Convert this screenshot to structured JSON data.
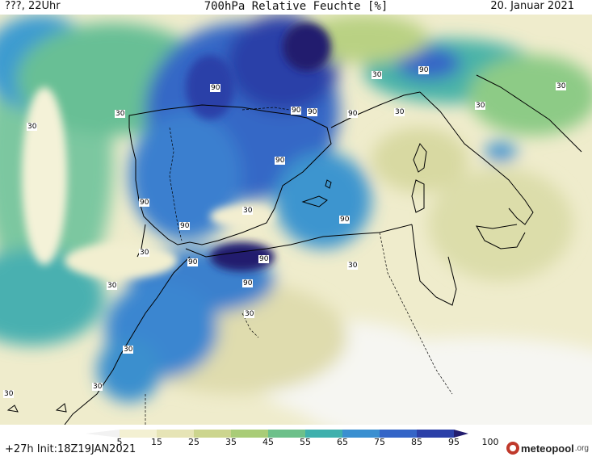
{
  "header": {
    "left_label": "???, 22Uhr",
    "title": "700hPa Relative Feuchte [%]",
    "date": "20. Januar 2021"
  },
  "map": {
    "contour_labels": [
      "90",
      "90",
      "90",
      "90",
      "90",
      "90",
      "90",
      "90",
      "90",
      "90",
      "90",
      "90",
      "30",
      "30",
      "30",
      "30",
      "30",
      "30",
      "30",
      "30",
      "30",
      "30",
      "30",
      "30",
      "30",
      "30"
    ]
  },
  "colorbar": {
    "ticks": [
      "5",
      "15",
      "25",
      "35",
      "45",
      "55",
      "65",
      "75",
      "85",
      "95",
      "100"
    ],
    "colors": [
      "#f2f2f2",
      "#f3f0d2",
      "#e6e4b6",
      "#ccd58e",
      "#a9cc77",
      "#6dc08a",
      "#3fb0ad",
      "#3a8fd0",
      "#3465c7",
      "#2b40a8",
      "#221c6e"
    ]
  },
  "footer": {
    "init_text": "+27h  Init:18Z19JAN2021",
    "brand_name": "meteopool",
    "brand_tld": ".org"
  }
}
